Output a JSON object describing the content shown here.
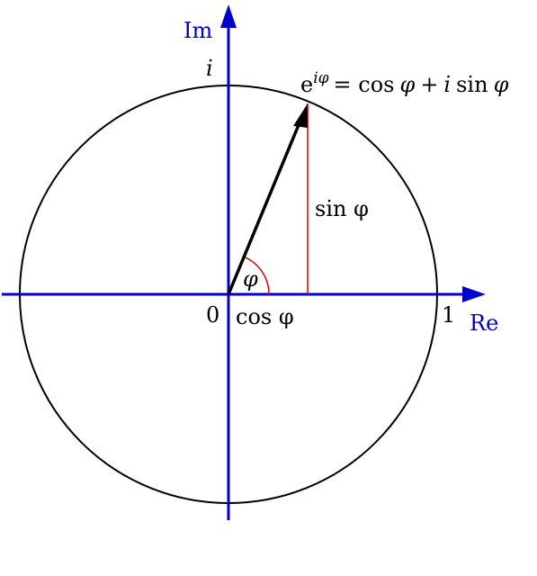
{
  "axes": {
    "real": "Re",
    "imaginary": "Im"
  },
  "labels": {
    "origin": "0",
    "one": "1",
    "i": "i",
    "angle": "φ",
    "cos": "cos φ",
    "sin": "sin φ"
  },
  "formula": {
    "base": "e",
    "exponent": "iφ",
    "rhs": [
      "= cos",
      "φ",
      "+",
      "i",
      "sin",
      "φ"
    ]
  }
}
